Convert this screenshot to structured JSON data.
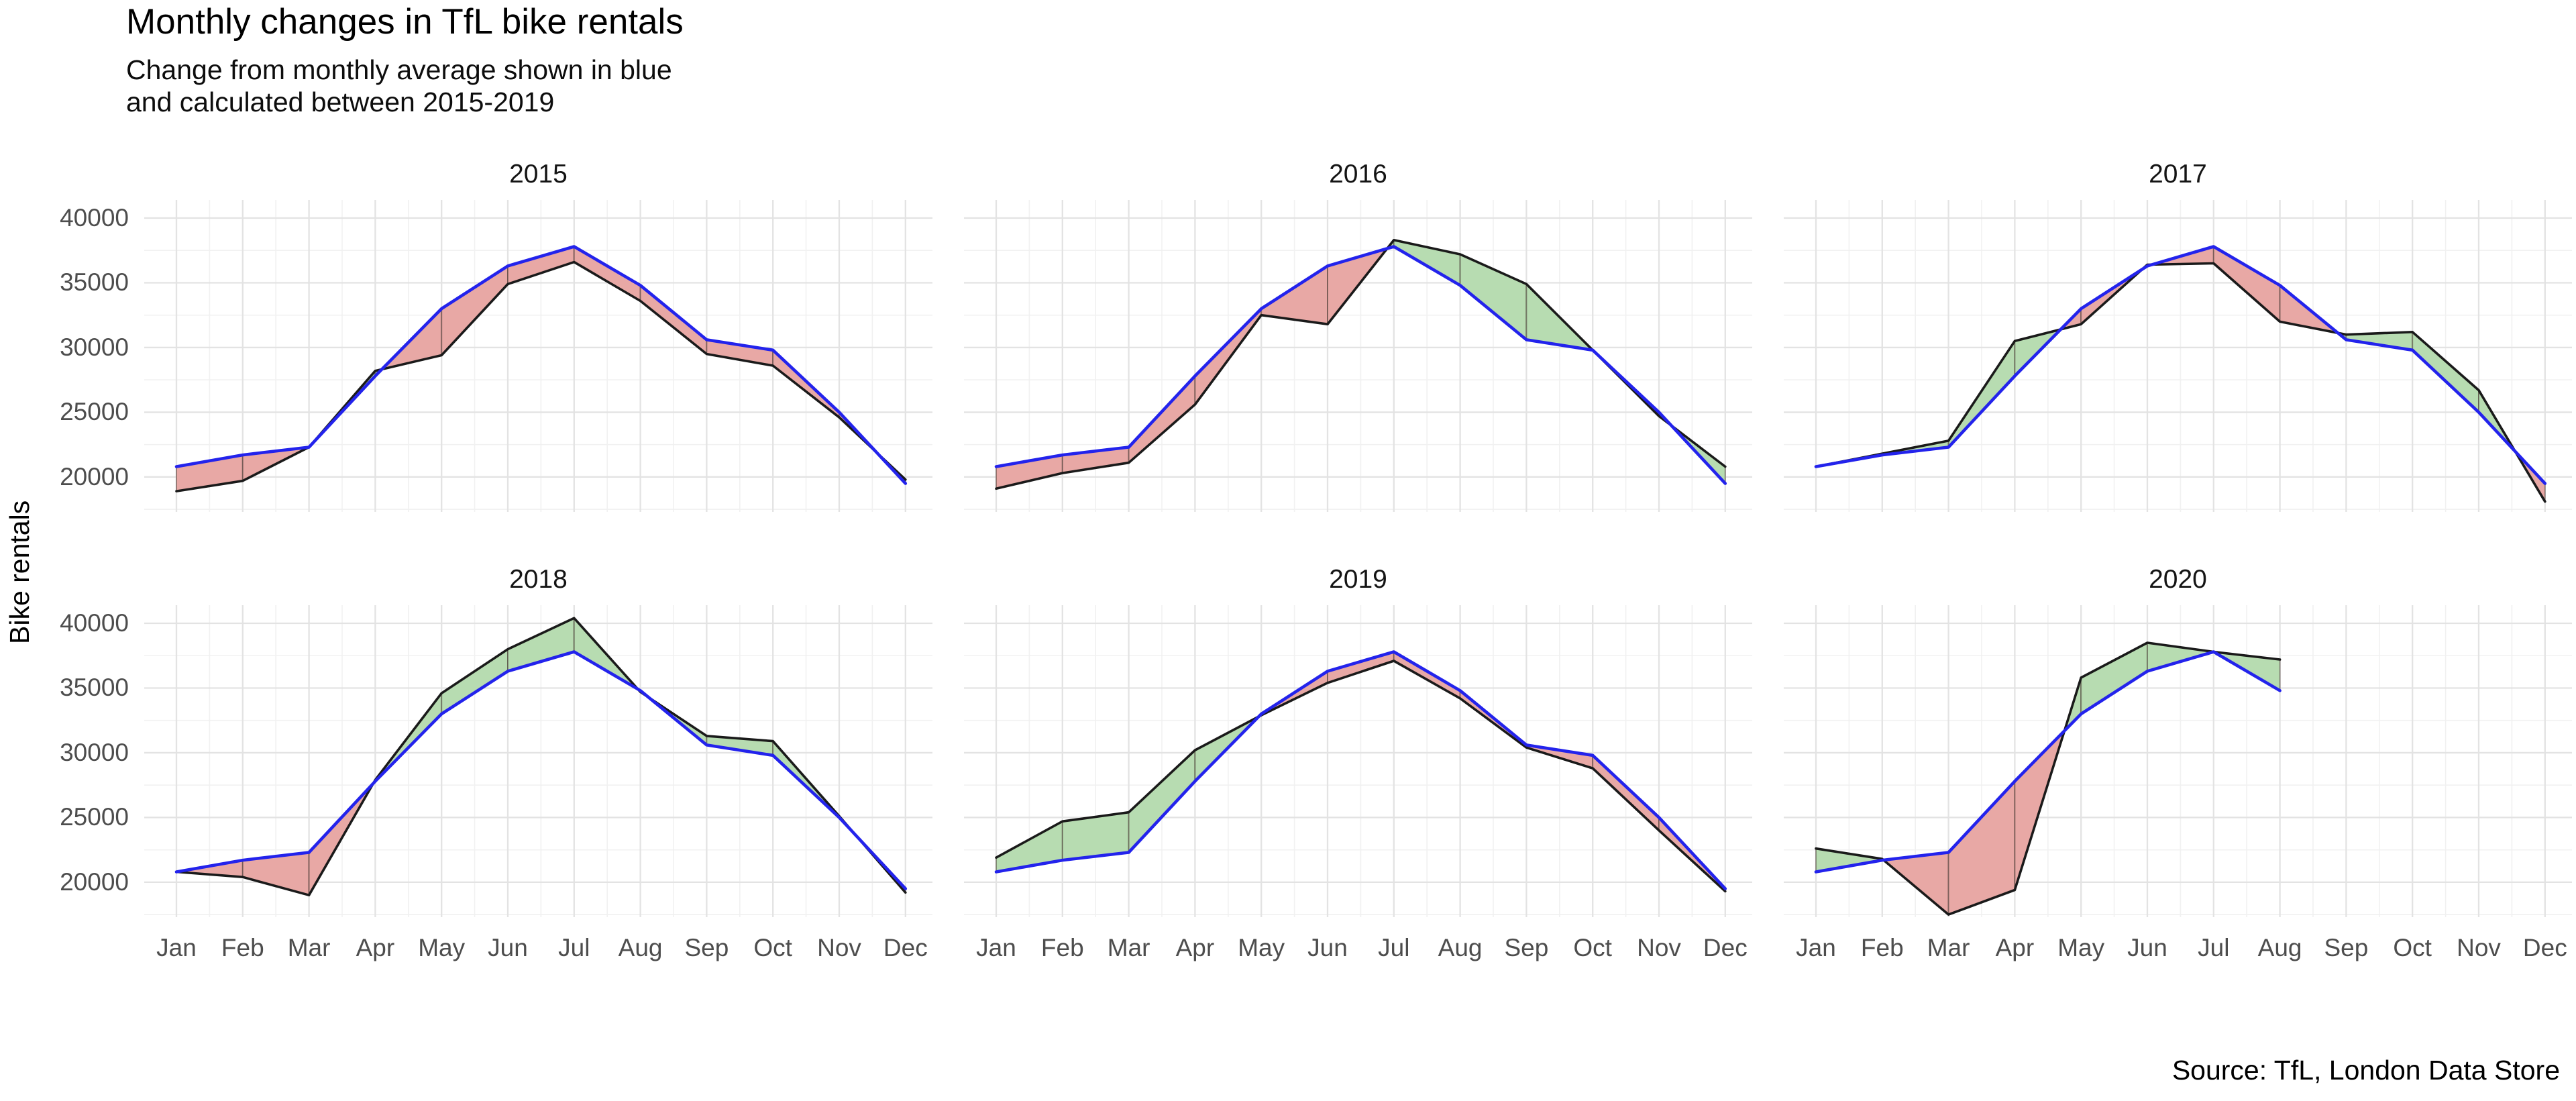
{
  "title": "Monthly changes in TfL bike rentals",
  "subtitle_line1": "Change from monthly average shown in blue",
  "subtitle_line2": "and calculated between 2015-2019",
  "y_axis_label": "Bike rentals",
  "source": "Source: TfL, London Data Store",
  "colors": {
    "average_line": "#2323ec",
    "actual_line": "#1a1a1a",
    "above_average_fill": "#b7dcb1",
    "below_average_fill": "#e8a8a5",
    "ribbon_edge": "rgba(70,55,50,0.5)",
    "grid_major": "#e3e3e3",
    "grid_minor": "#f1f1f1",
    "axis_text": "#4d4d4d"
  },
  "chart_data": {
    "type": "line",
    "title": "Monthly changes in TfL bike rentals",
    "subtitle": "Change from monthly average shown in blue and calculated between 2015-2019",
    "ylabel": "Bike rentals",
    "categories": [
      "Jan",
      "Feb",
      "Mar",
      "Apr",
      "May",
      "Jun",
      "Jul",
      "Aug",
      "Sep",
      "Oct",
      "Nov",
      "Dec"
    ],
    "y_ticks": [
      20000,
      25000,
      30000,
      35000,
      40000
    ],
    "y_minor_ticks": [
      17500,
      22500,
      27500,
      32500,
      37500
    ],
    "ylim": [
      17300,
      41400
    ],
    "grid": "on",
    "legend_position": "none",
    "average_series_name": "2015-2019 monthly average (blue)",
    "average": [
      20800,
      21700,
      22300,
      27800,
      33000,
      36300,
      37800,
      34800,
      30600,
      29800,
      25000,
      19500
    ],
    "facets": [
      {
        "year": "2015",
        "values": [
          18900,
          19700,
          22300,
          28200,
          29400,
          34900,
          36600,
          33600,
          29500,
          28600,
          24600,
          19800
        ]
      },
      {
        "year": "2016",
        "values": [
          19100,
          20300,
          21100,
          25600,
          32500,
          31800,
          38300,
          37200,
          34900,
          29800,
          24700,
          20800
        ]
      },
      {
        "year": "2017",
        "values": [
          20800,
          21800,
          22800,
          30500,
          31800,
          36400,
          36500,
          32000,
          31000,
          31200,
          26700,
          18100
        ]
      },
      {
        "year": "2018",
        "values": [
          20800,
          20400,
          19000,
          27900,
          34600,
          38000,
          40400,
          34700,
          31300,
          30900,
          25100,
          19200
        ]
      },
      {
        "year": "2019",
        "values": [
          21900,
          24700,
          25400,
          30200,
          32900,
          35400,
          37100,
          34200,
          30400,
          28800,
          24000,
          19300
        ]
      },
      {
        "year": "2020",
        "values": [
          22600,
          21800,
          17500,
          19400,
          35800,
          38500,
          37800,
          37200,
          null,
          null,
          null,
          null
        ]
      }
    ]
  }
}
